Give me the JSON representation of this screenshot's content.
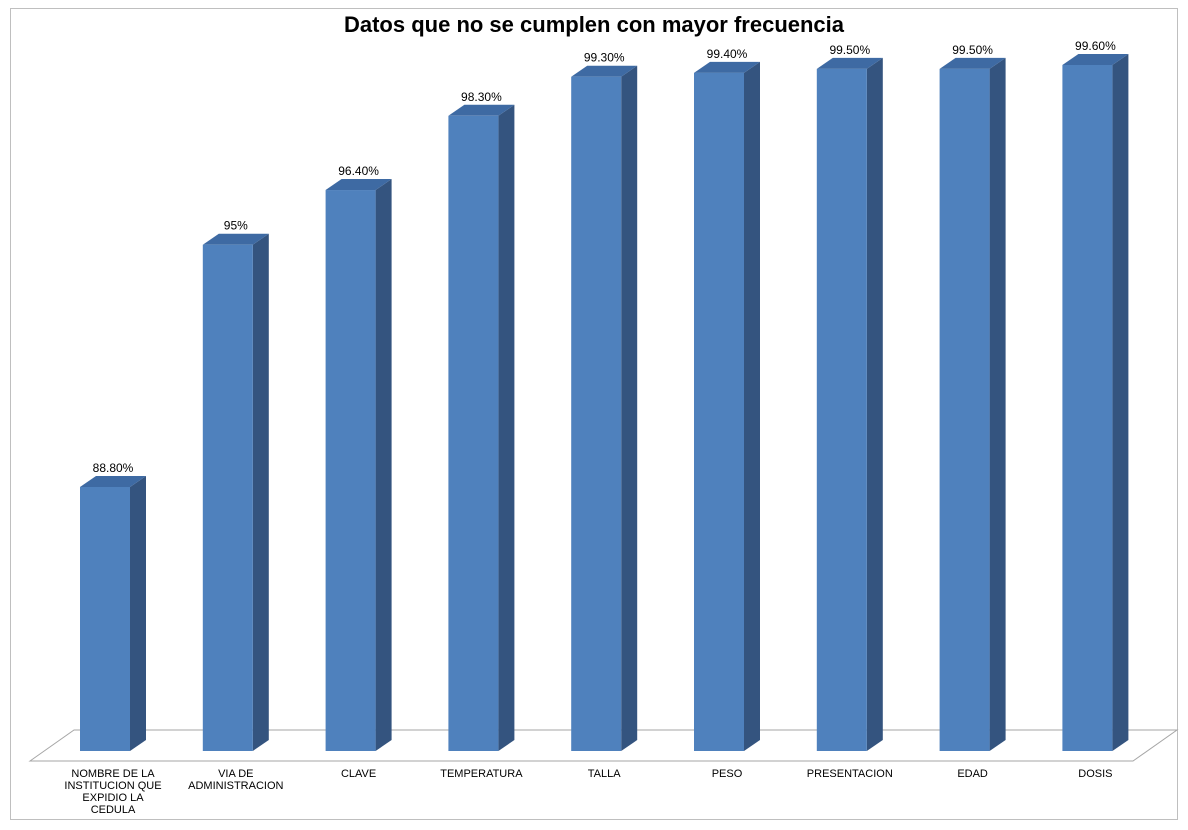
{
  "chart_data": {
    "type": "bar",
    "title": "Datos que no se cumplen con mayor frecuencia",
    "categories": [
      "NOMBRE DE LA INSTITUCION QUE EXPIDIO LA CEDULA",
      "VIA DE ADMINISTRACION",
      "CLAVE",
      "TEMPERATURA",
      "TALLA",
      "PESO",
      "PRESENTACION",
      "EDAD",
      "DOSIS"
    ],
    "category_lines": [
      [
        "NOMBRE DE LA",
        "INSTITUCION QUE",
        "EXPIDIO LA",
        "CEDULA"
      ],
      [
        "VIA DE",
        "ADMINISTRACION"
      ],
      [
        "CLAVE"
      ],
      [
        "TEMPERATURA"
      ],
      [
        "TALLA"
      ],
      [
        "PESO"
      ],
      [
        "PRESENTACION"
      ],
      [
        "EDAD"
      ],
      [
        "DOSIS"
      ]
    ],
    "values": [
      88.8,
      95,
      96.4,
      98.3,
      99.3,
      99.4,
      99.5,
      99.5,
      99.6
    ],
    "data_labels": [
      "88.80%",
      "95%",
      "96.40%",
      "98.30%",
      "99.30%",
      "99.40%",
      "99.50%",
      "99.50%",
      "99.60%"
    ],
    "xlabel": "",
    "ylabel": "",
    "ylim": [
      80,
      100
    ],
    "grid": false,
    "legend": "none",
    "style": "3d-column",
    "colors": {
      "front": "#4f81bd",
      "side": "#34547f",
      "top": "#3e6aa3"
    }
  }
}
